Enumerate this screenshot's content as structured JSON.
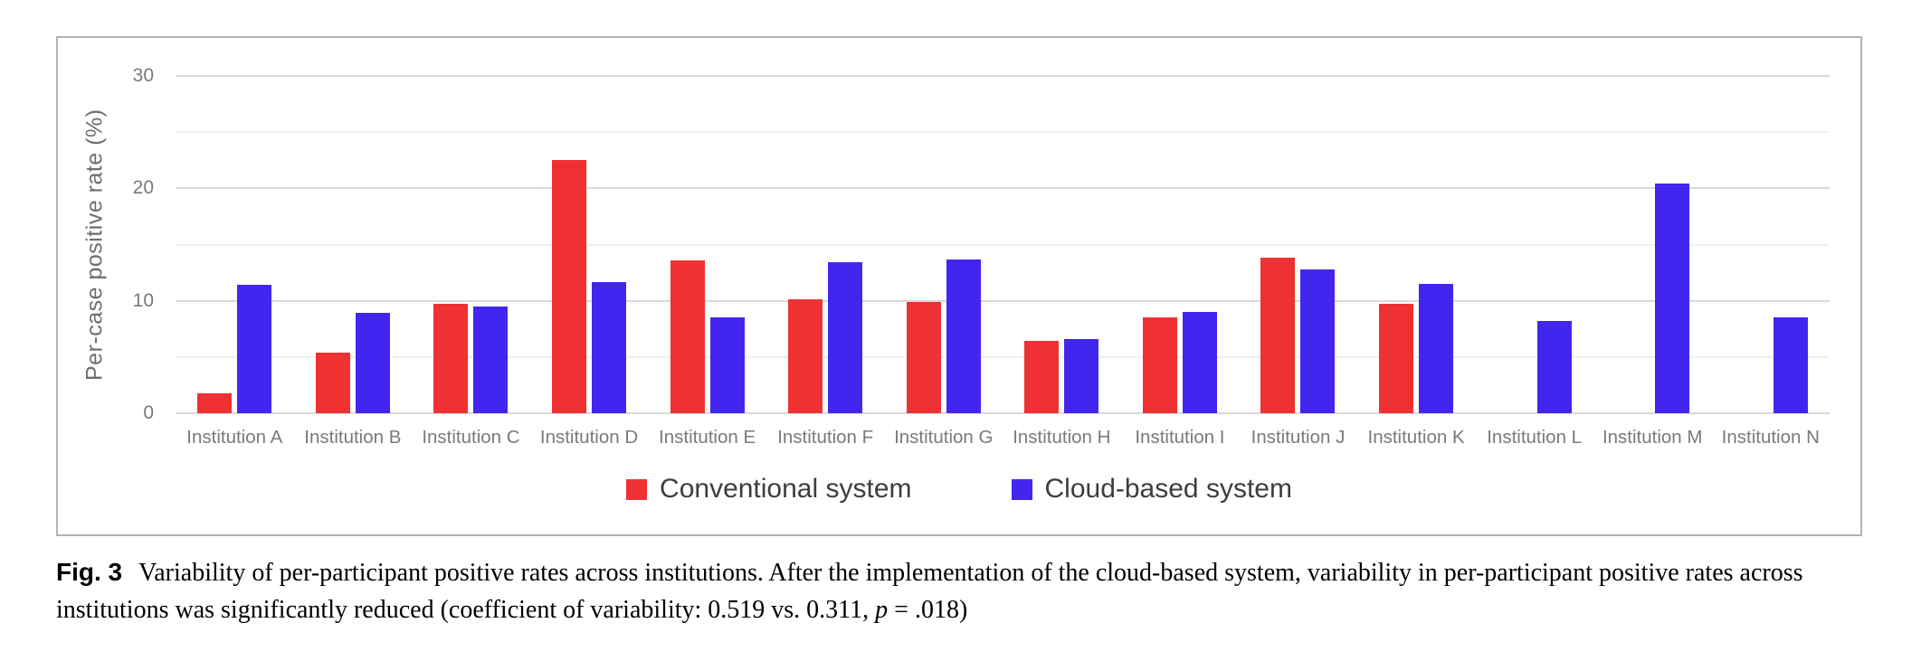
{
  "figure": {
    "caption": {
      "label": "Fig. 3",
      "body": "Variability of per-participant positive rates across institutions. After the implementation of the cloud-based system, variability in per-participant positive rates across institutions was significantly reduced (coefficient of variability: 0.519 vs. 0.311, ",
      "p_italic": "p",
      "tail": " = .018)"
    }
  },
  "chart_data": {
    "type": "bar",
    "title": "",
    "xlabel": "",
    "ylabel": "Per-case positive rate (%)",
    "ylim": [
      0,
      30
    ],
    "yticks": [
      0,
      10,
      20,
      30
    ],
    "gridlines": [
      0,
      5,
      10,
      15,
      20,
      25,
      30
    ],
    "grid": true,
    "legend_position": "bottom-center-inside",
    "categories": [
      "Institution A",
      "Institution B",
      "Institution C",
      "Institution D",
      "Institution E",
      "Institution F",
      "Institution G",
      "Institution H",
      "Institution I",
      "Institution J",
      "Institution K",
      "Institution L",
      "Institution M",
      "Institution N"
    ],
    "series": [
      {
        "name": "Conventional system",
        "color": "#ee3233",
        "values": [
          1.8,
          5.4,
          9.7,
          22.5,
          13.6,
          10.1,
          9.9,
          6.4,
          8.5,
          13.8,
          9.7,
          null,
          null,
          null
        ]
      },
      {
        "name": "Cloud-based system",
        "color": "#4226f0",
        "values": [
          11.4,
          8.9,
          9.5,
          11.7,
          8.5,
          13.4,
          13.7,
          6.6,
          9.0,
          12.8,
          11.5,
          8.2,
          20.4,
          8.5
        ]
      }
    ]
  }
}
